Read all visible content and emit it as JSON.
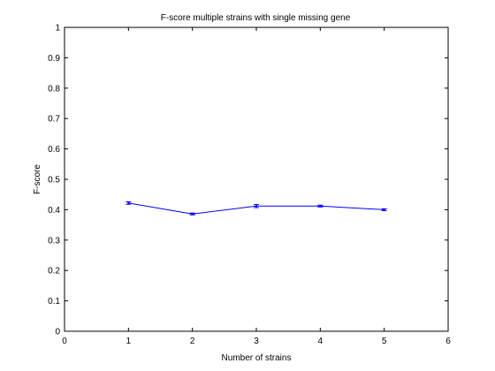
{
  "chart_data": {
    "type": "line",
    "title": "F-score multiple strains with single missing gene",
    "xlabel": "Number of strains",
    "ylabel": "F-score",
    "xlim": [
      0,
      6
    ],
    "ylim": [
      0,
      1
    ],
    "xticks": [
      0,
      1,
      2,
      3,
      4,
      5,
      6
    ],
    "xtick_labels": [
      "0",
      "1",
      "2",
      "3",
      "4",
      "5",
      "6"
    ],
    "yticks": [
      0,
      0.1,
      0.2,
      0.3,
      0.4,
      0.5,
      0.6,
      0.7,
      0.8,
      0.9,
      1
    ],
    "ytick_labels": [
      "0",
      "0.1",
      "0.2",
      "0.3",
      "0.4",
      "0.5",
      "0.6",
      "0.7",
      "0.8",
      "0.9",
      "1"
    ],
    "grid": false,
    "series": [
      {
        "name": "F-score",
        "color": "#0000ff",
        "x": [
          1,
          2,
          3,
          4,
          5
        ],
        "y": [
          0.422,
          0.386,
          0.412,
          0.412,
          0.4
        ],
        "error": [
          0.004,
          0.003,
          0.005,
          0.003,
          0.003
        ]
      }
    ]
  }
}
